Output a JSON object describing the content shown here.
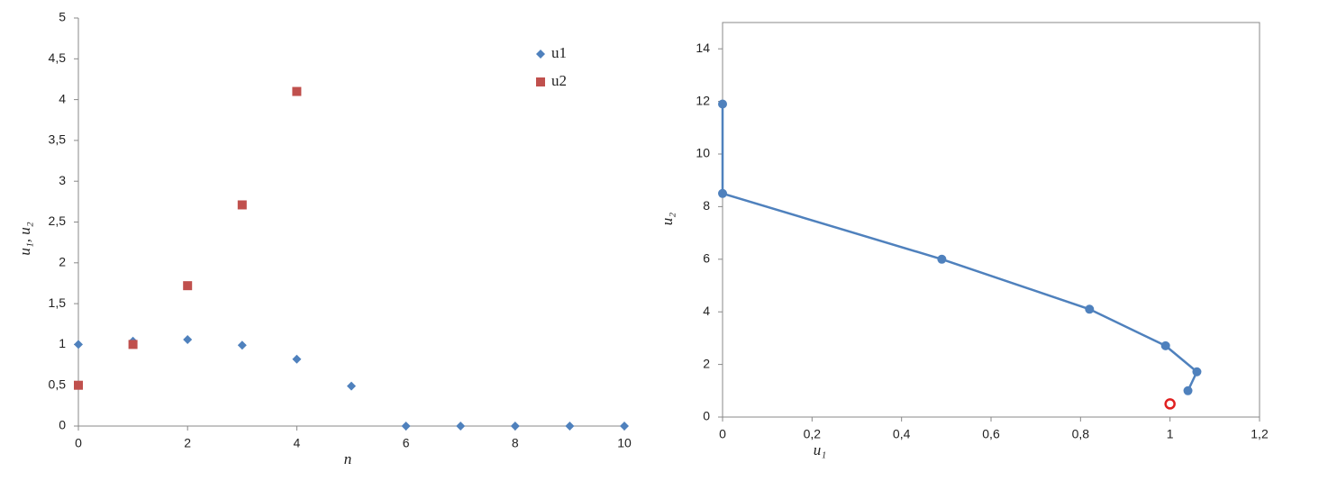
{
  "chart_data": [
    {
      "type": "scatter",
      "xlabel": "n",
      "ylabel": "u₁, u₂",
      "x": [
        0,
        1,
        2,
        3,
        4,
        5,
        6,
        7,
        8,
        9,
        10
      ],
      "series": [
        {
          "name": "u1",
          "color": "#4f81bd",
          "marker": "diamond",
          "values": [
            1,
            1.04,
            1.06,
            0.99,
            0.82,
            0.49,
            0,
            0,
            0,
            0,
            0
          ]
        },
        {
          "name": "u2",
          "color": "#c0504d",
          "marker": "square",
          "values": [
            0.5,
            1,
            1.72,
            2.71,
            4.1,
            null,
            null,
            null,
            null,
            null,
            null
          ]
        }
      ],
      "xlim": [
        0,
        10
      ],
      "xticks": [
        0,
        2,
        4,
        6,
        8,
        10
      ],
      "ylim": [
        0,
        5
      ],
      "yticks": [
        0,
        {
          "value": 0.5,
          "label": "0,5"
        },
        1,
        {
          "value": 1.5,
          "label": "1,5"
        },
        2,
        {
          "value": 2.5,
          "label": "2,5"
        },
        3,
        {
          "value": 3.5,
          "label": "3,5"
        },
        4,
        {
          "value": 4.5,
          "label": "4,5"
        },
        5
      ],
      "legend": "upper right",
      "frame": false
    },
    {
      "type": "line",
      "xlabel": "u₁",
      "ylabel": "u₂",
      "x": [
        1.04,
        1.06,
        0.99,
        0.82,
        0.49,
        0,
        0
      ],
      "values": [
        1,
        1.72,
        2.71,
        4.1,
        6.0,
        8.5,
        11.9
      ],
      "color": "#4f81bd",
      "highlight": {
        "x": 1,
        "y": 0.5,
        "color": "#e02020"
      },
      "xlim": [
        0,
        1.2
      ],
      "xticks": [
        0,
        {
          "value": 0.2,
          "label": "0,2"
        },
        {
          "value": 0.4,
          "label": "0,4"
        },
        {
          "value": 0.6,
          "label": "0,6"
        },
        {
          "value": 0.8,
          "label": "0,8"
        },
        1,
        {
          "value": 1.2,
          "label": "1,2"
        }
      ],
      "ylim": [
        0,
        15
      ],
      "yticks": [
        0,
        2,
        4,
        6,
        8,
        10,
        12,
        14
      ],
      "frame": true
    }
  ]
}
